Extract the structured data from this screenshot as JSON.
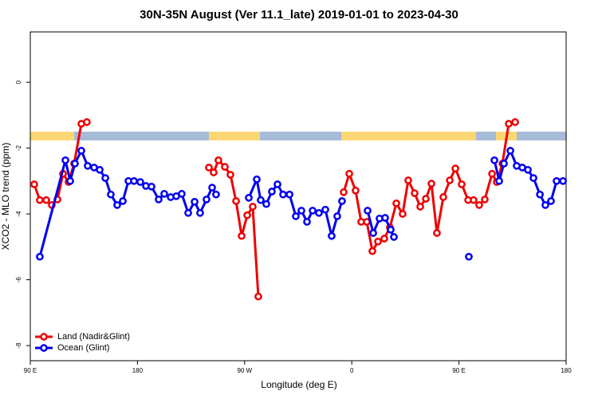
{
  "chart_data": {
    "type": "line",
    "title": "30N-35N August (Ver 11.1_late)   2019-01-01 to 2023-04-30",
    "x_label": "Longitude (deg E)",
    "y_label": "XCO2 - MLO trend (ppm)",
    "xlim": [
      90,
      540
    ],
    "ylim": [
      -8.46,
      1.53
    ],
    "xticks": [
      {
        "value": 90,
        "label": "90 E"
      },
      180,
      {
        "value": 270,
        "label": "90 W"
      },
      {
        "value": 360,
        "label": "0"
      },
      {
        "value": 450,
        "label": "90 E"
      },
      {
        "value": 540,
        "label": "180"
      }
    ],
    "yticks": [
      0,
      -2,
      -4,
      -6,
      -8
    ],
    "legend": "bottom-left",
    "series": [
      {
        "name": "Land (Nadir&Glint)",
        "color": "#ee0000",
        "x": [
          93.3,
          98.0,
          103.4,
          108.1,
          112.8,
          117.5,
          122.1,
          126.8,
          132.9,
          137.5,
          null,
          240.0,
          244.0,
          248.0,
          253.4,
          258.1,
          262.8,
          267.5,
          272.2,
          276.8,
          281.5,
          null,
          353.2,
          357.9,
          363.2,
          367.9,
          372.6,
          377.3,
          382.0,
          387.3,
          392.0,
          397.4,
          402.7,
          407.4,
          412.8,
          417.5,
          422.2,
          426.9,
          431.5,
          436.9,
          442.3,
          447.0,
          452.3,
          457.7,
          462.3,
          467.0,
          471.7,
          477.8,
          481.8,
          486.5,
          491.8,
          497.2
        ],
        "values": [
          -3.1,
          -3.58,
          -3.58,
          -3.73,
          -3.56,
          -2.78,
          -3.03,
          -2.47,
          -1.26,
          -1.21,
          null,
          -2.59,
          -2.74,
          -2.37,
          -2.57,
          -2.81,
          -3.61,
          -4.67,
          -4.04,
          -3.78,
          -6.51,
          null,
          -3.34,
          -2.78,
          -3.29,
          -4.24,
          -4.24,
          -5.13,
          -4.84,
          -4.75,
          -4.41,
          -3.68,
          -4.0,
          -2.98,
          -3.37,
          -3.78,
          -3.54,
          -3.08,
          -4.58,
          -3.49,
          -2.98,
          -2.62,
          -3.1,
          -3.58,
          -3.58,
          -3.73,
          -3.56,
          -2.78,
          -3.03,
          -2.47,
          -1.26,
          -1.21
        ]
      },
      {
        "name": "Ocean (Glint)",
        "color": "#0000ee",
        "x": [
          98.0,
          119.5,
          123.5,
          127.5,
          132.9,
          138.2,
          143.6,
          148.3,
          153.0,
          157.6,
          163.0,
          167.7,
          172.4,
          177.1,
          182.4,
          187.1,
          191.8,
          197.8,
          202.5,
          207.9,
          212.6,
          217.2,
          222.6,
          228.0,
          232.6,
          238.0,
          242.7,
          246.0,
          null,
          273.5,
          280.2,
          283.5,
          288.2,
          292.9,
          297.6,
          302.3,
          307.7,
          313.0,
          317.7,
          322.4,
          327.1,
          332.4,
          337.8,
          343.1,
          347.8,
          351.8,
          null,
          373.3,
          378.0,
          383.3,
          388.0,
          392.7,
          395.4,
          null,
          458.3,
          null,
          479.8,
          483.8,
          487.8,
          493.2,
          498.5,
          503.2,
          507.9,
          512.6,
          518.0,
          522.6,
          527.3,
          532.0,
          537.4
        ],
        "values": [
          -5.3,
          -2.37,
          -3.0,
          -2.47,
          -2.08,
          -2.54,
          -2.59,
          -2.66,
          -2.91,
          -3.41,
          -3.73,
          -3.61,
          -3.0,
          -3.0,
          -3.03,
          -3.15,
          -3.17,
          -3.56,
          -3.39,
          -3.49,
          -3.46,
          -3.39,
          -3.97,
          -3.63,
          -3.97,
          -3.56,
          -3.2,
          -3.41,
          null,
          -3.51,
          -2.95,
          -3.58,
          -3.7,
          -3.32,
          -3.1,
          -3.41,
          -3.41,
          -4.07,
          -3.9,
          -4.24,
          -3.9,
          -3.97,
          -3.87,
          -4.67,
          -4.07,
          -3.61,
          null,
          -3.9,
          -4.58,
          -4.14,
          -4.12,
          -4.48,
          -4.7,
          null,
          -5.3,
          null,
          -2.37,
          -3.0,
          -2.47,
          -2.08,
          -2.54,
          -2.59,
          -2.66,
          -2.91,
          -3.41,
          -3.73,
          -3.61,
          -3.0,
          -3.0
        ]
      }
    ]
  }
}
